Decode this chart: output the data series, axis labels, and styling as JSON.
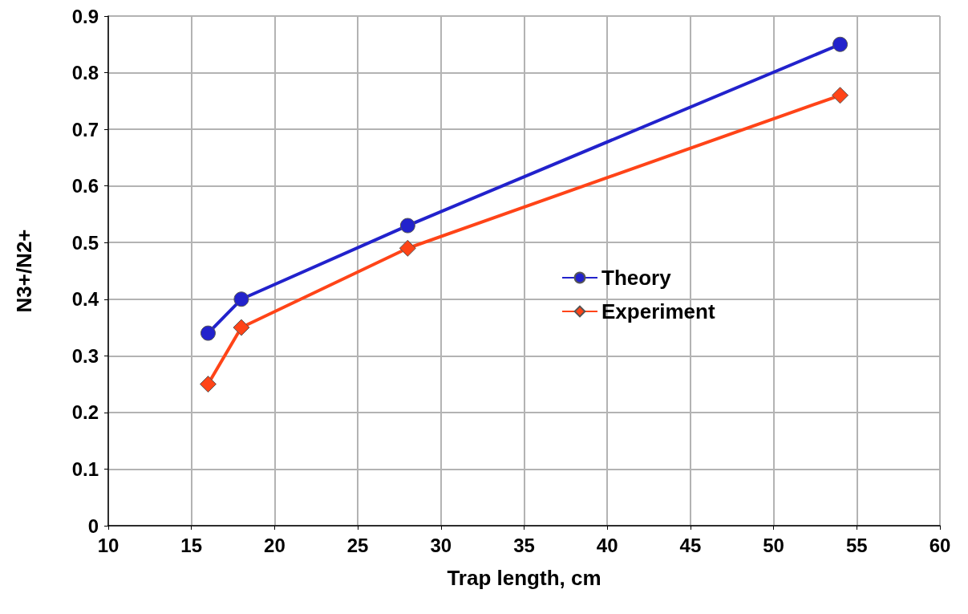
{
  "chart_data": {
    "type": "line",
    "xlabel": "Trap length, cm",
    "ylabel": "N3+/N2+",
    "series": [
      {
        "name": "Theory",
        "color": "#2222cc",
        "marker": "circle",
        "x": [
          16,
          18,
          28,
          54
        ],
        "values": [
          0.34,
          0.4,
          0.53,
          0.85
        ]
      },
      {
        "name": "Experiment",
        "color": "#ff4418",
        "marker": "diamond",
        "x": [
          16,
          18,
          28,
          54
        ],
        "values": [
          0.25,
          0.35,
          0.49,
          0.76
        ]
      }
    ],
    "xlim": [
      10,
      60
    ],
    "xticks": [
      10,
      15,
      20,
      25,
      30,
      35,
      40,
      45,
      50,
      55,
      60
    ],
    "ylim": [
      0,
      0.9
    ],
    "yticks": [
      0,
      0.1,
      0.2,
      0.3,
      0.4,
      0.5,
      0.6,
      0.7,
      0.8,
      0.9
    ],
    "grid": true,
    "legend": "right",
    "line_style": "solid"
  }
}
